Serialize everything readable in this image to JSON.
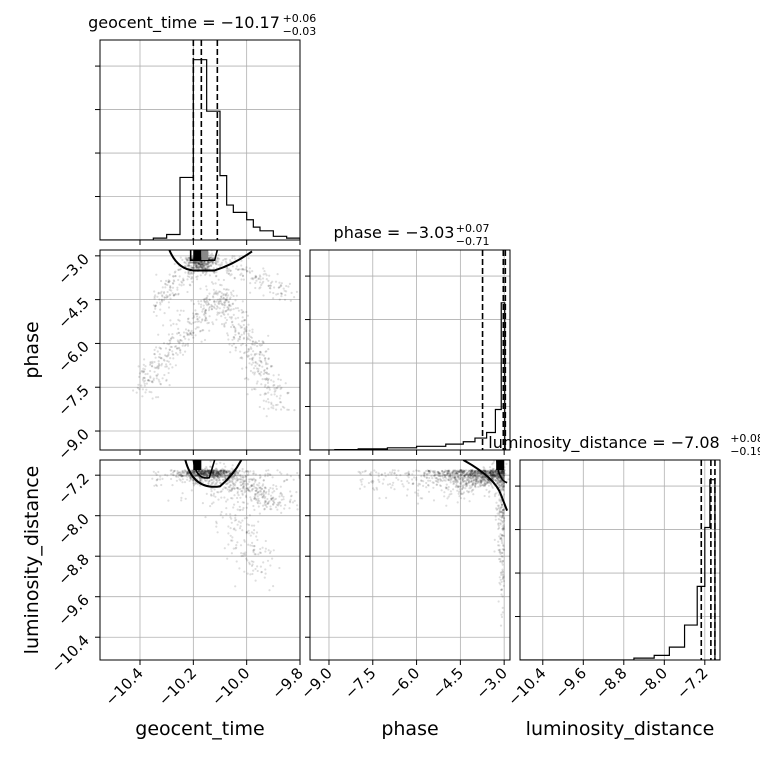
{
  "chart_data": {
    "type": "scatter",
    "style": "corner-plot",
    "grid": true,
    "parameters": [
      "geocent_time",
      "phase",
      "luminosity_distance"
    ],
    "axis_labels": {
      "geocent_time": "geocent_time",
      "phase": "phase",
      "luminosity_distance": "luminosity_distance"
    },
    "titles": [
      {
        "param": "geocent_time",
        "text": "geocent_time = −10.17",
        "plus": "+0.06",
        "minus": "−0.03"
      },
      {
        "param": "phase",
        "text": "phase = −3.03",
        "plus": "+0.07",
        "minus": "−0.71"
      },
      {
        "param": "luminosity_distance",
        "text": "luminosity_distance = −7.08",
        "plus": "+0.08",
        "minus": "−0.19"
      }
    ],
    "ticks": {
      "geocent_time": {
        "values": [
          -10.4,
          -10.2,
          -10.0,
          -9.8
        ],
        "labels": [
          "−10.4",
          "−10.2",
          "−10.0",
          "−9.8"
        ]
      },
      "phase": {
        "values": [
          -9.0,
          -7.5,
          -6.0,
          -4.5,
          -3.0
        ],
        "labels": [
          "−9.0",
          "−7.5",
          "−6.0",
          "−4.5",
          "−3.0"
        ]
      },
      "luminosity_distance": {
        "values": [
          -10.4,
          -9.6,
          -8.8,
          -8.0,
          -7.2
        ],
        "labels": [
          "−10.4",
          "−9.6",
          "−8.8",
          "−8.0",
          "−7.2"
        ]
      }
    },
    "ranges": {
      "geocent_time": [
        -10.55,
        -9.8
      ],
      "phase": [
        -9.65,
        -2.8
      ],
      "luminosity_distance": [
        -10.85,
        -6.9
      ]
    },
    "quantile_lines": {
      "geocent_time": [
        -10.2,
        -10.17,
        -10.11
      ],
      "phase": [
        -3.74,
        -3.03,
        -2.96
      ],
      "luminosity_distance": [
        -7.27,
        -7.08,
        -7.0
      ]
    },
    "histograms": {
      "geocent_time": {
        "edges": [
          -10.55,
          -10.35,
          -10.3,
          -10.25,
          -10.2,
          -10.15,
          -10.1,
          -10.075,
          -10.05,
          -10.0,
          -9.975,
          -9.95,
          -9.9,
          -9.85,
          -9.8
        ],
        "heights": [
          0.0,
          0.01,
          0.03,
          0.34,
          0.98,
          0.7,
          0.35,
          0.19,
          0.15,
          0.11,
          0.07,
          0.05,
          0.02,
          0.01
        ]
      },
      "phase": {
        "edges": [
          -9.65,
          -8.8,
          -8.0,
          -7.0,
          -6.0,
          -5.0,
          -4.4,
          -4.0,
          -3.6,
          -3.3,
          -3.1,
          -2.98,
          -2.8
        ],
        "heights": [
          0.0,
          0.002,
          0.006,
          0.012,
          0.02,
          0.032,
          0.045,
          0.065,
          0.095,
          0.22,
          0.8,
          0.0
        ]
      },
      "luminosity_distance": {
        "edges": [
          -10.85,
          -8.6,
          -8.2,
          -7.9,
          -7.6,
          -7.35,
          -7.2,
          -7.1,
          -7.0,
          -6.9
        ],
        "heights": [
          0.0,
          0.01,
          0.025,
          0.07,
          0.19,
          0.4,
          0.72,
          0.98,
          0.0
        ]
      }
    },
    "scatter": {
      "phase_vs_geocent_time": {
        "arm_center": [
          -10.1,
          -4.4
        ],
        "left_arm_end": [
          -10.4,
          -7.4
        ],
        "right_arm_end": [
          -9.9,
          -8.2
        ],
        "contour_peak": [
          -10.17,
          -3.0
        ]
      },
      "luminosity_distance_vs_geocent_time": {
        "peak": [
          -10.17,
          -7.15
        ],
        "tail_end": [
          -9.9,
          -9.6
        ]
      },
      "luminosity_distance_vs_phase": {
        "peak": [
          -3.0,
          -7.15
        ],
        "spread_left": [
          -7.5,
          -7.2
        ]
      }
    }
  }
}
